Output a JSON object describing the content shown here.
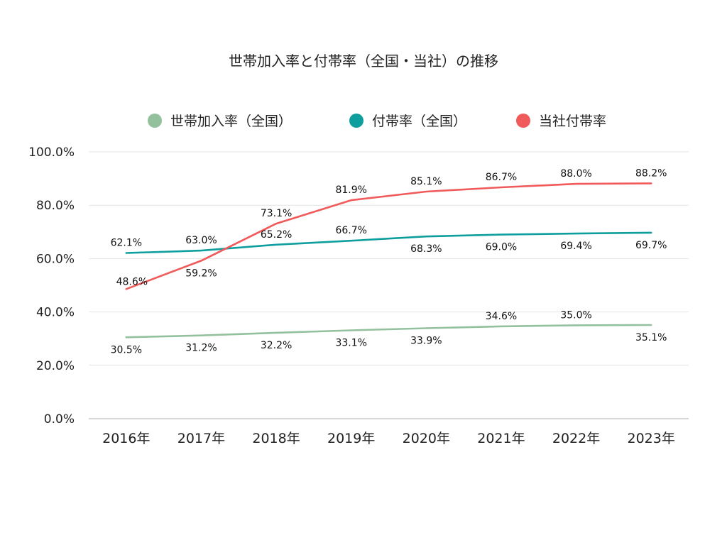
{
  "chart_data": {
    "type": "line",
    "title": "世帯加入率と付帯率（全国・当社）の推移",
    "xlabel": "",
    "ylabel": "",
    "categories": [
      "2016年",
      "2017年",
      "2018年",
      "2019年",
      "2020年",
      "2021年",
      "2022年",
      "2023年"
    ],
    "ylim": [
      0,
      100
    ],
    "yticks": [
      0,
      20,
      40,
      60,
      80,
      100
    ],
    "ytick_labels": [
      "0.0%",
      "20.0%",
      "40.0%",
      "60.0%",
      "80.0%",
      "100.0%"
    ],
    "grid": true,
    "legend_position": "top-center",
    "series": [
      {
        "name": "世帯加入率（全国）",
        "color": "#93c19d",
        "values": [
          30.5,
          31.2,
          32.2,
          33.1,
          33.9,
          34.6,
          35.0,
          35.1
        ],
        "labels": [
          "30.5%",
          "31.2%",
          "32.2%",
          "33.1%",
          "33.9%",
          "34.6%",
          "35.0%",
          "35.1%"
        ],
        "label_position": [
          "below",
          "below",
          "below",
          "below",
          "below",
          "above",
          "above",
          "below"
        ]
      },
      {
        "name": "付帯率（全国）",
        "color": "#0f9e9e",
        "values": [
          62.1,
          63.0,
          65.2,
          66.7,
          68.3,
          69.0,
          69.4,
          69.7
        ],
        "labels": [
          "62.1%",
          "63.0%",
          "65.2%",
          "66.7%",
          "68.3%",
          "69.0%",
          "69.4%",
          "69.7%"
        ],
        "label_position": [
          "above",
          "above",
          "above",
          "above",
          "below",
          "below",
          "below",
          "below"
        ]
      },
      {
        "name": "当社付帯率",
        "color": "#f05a5a",
        "values": [
          48.6,
          59.2,
          73.1,
          81.9,
          85.1,
          86.7,
          88.0,
          88.2
        ],
        "labels": [
          "48.6%",
          "59.2%",
          "73.1%",
          "81.9%",
          "85.1%",
          "86.7%",
          "88.0%",
          "88.2%"
        ],
        "label_position": [
          "left-above",
          "below",
          "above",
          "above",
          "above",
          "above",
          "above",
          "above"
        ]
      }
    ]
  }
}
